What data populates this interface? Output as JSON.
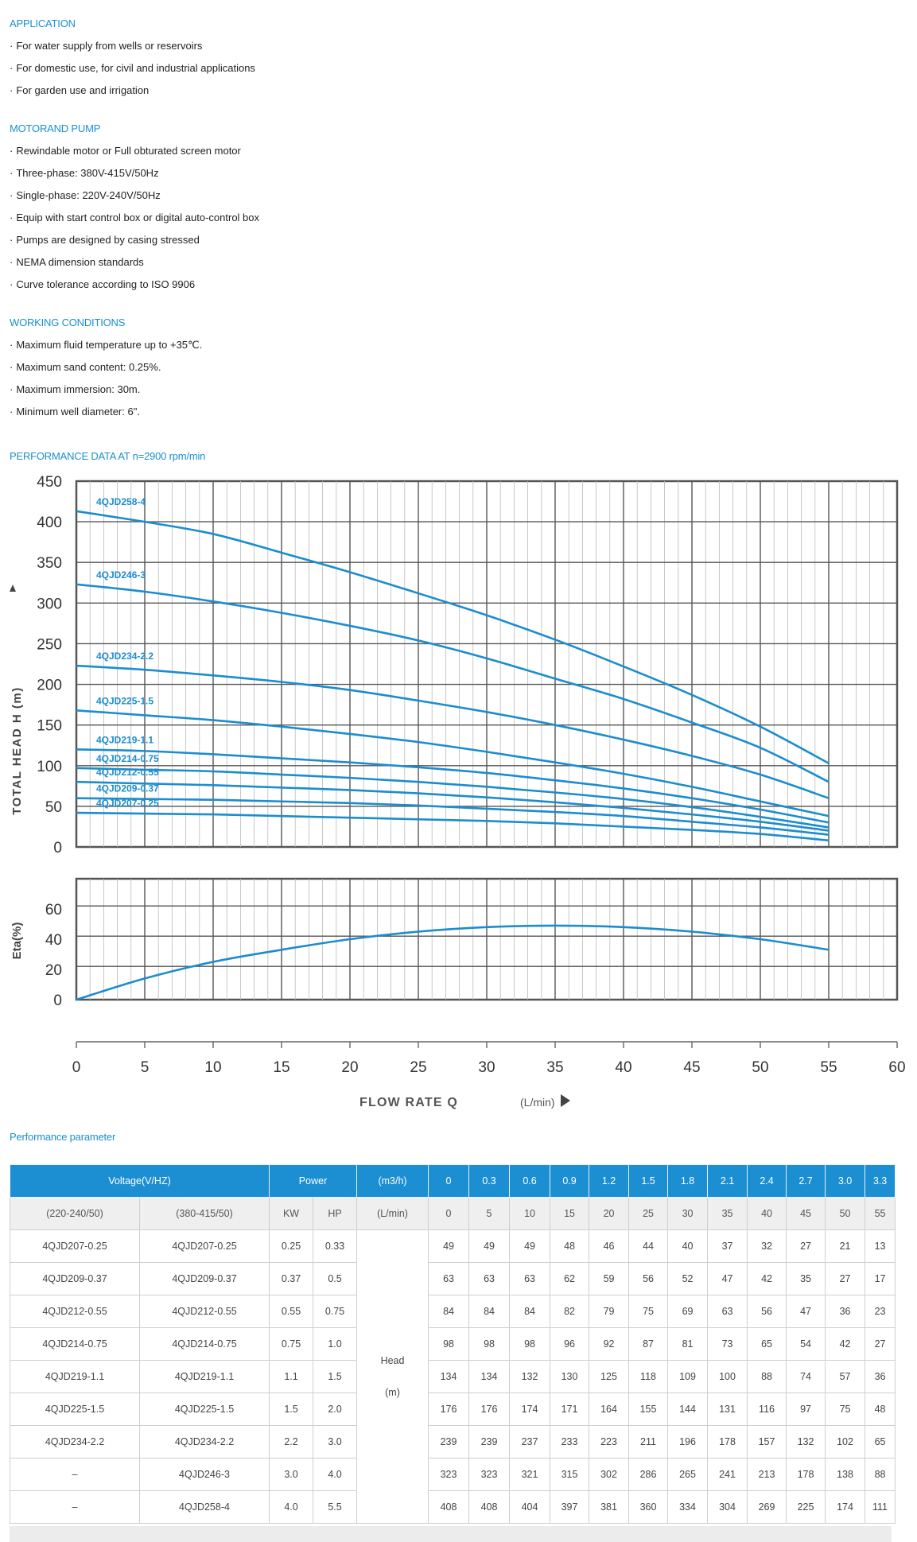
{
  "sections": {
    "application": {
      "title": "APPLICATION",
      "items": [
        "For water supply from wells or reservoirs",
        "For domestic use, for civil and industrial applications",
        "For garden use and irrigation"
      ]
    },
    "motor": {
      "title": "MOTORAND PUMP",
      "items": [
        "Rewindable motor or Full obturated screen motor",
        "Three-phase: 380V-415V/50Hz",
        "Single-phase: 220V-240V/50Hz",
        "Equip with start control box or digital auto-control box",
        "Pumps are designed by casing stressed",
        "NEMA dimension standards",
        "Curve tolerance according to ISO 9906"
      ]
    },
    "working": {
      "title": "WORKING CONDITIONS",
      "items": [
        "Maximum fluid temperature up to +35℃.",
        "Maximum sand content: 0.25%.",
        "Maximum immersion: 30m.",
        "Minimum well diameter: 6\"."
      ]
    },
    "performance_title": "PERFORMANCE DATA AT n=2900 rpm/min",
    "param_title": "Performance parameter"
  },
  "colors": {
    "accent": "#1a8fcf",
    "curve": "#1b8dcf",
    "grid": "#555555",
    "header_bg": "#1b8fd2"
  },
  "chart_data": [
    {
      "type": "line",
      "ylabel": "TOTAL HEAD H (m)",
      "ylim": [
        0,
        450
      ],
      "yticks": [
        0,
        50,
        100,
        150,
        200,
        250,
        300,
        350,
        400,
        450
      ],
      "xlim": [
        0,
        60
      ],
      "x": [
        0,
        5,
        10,
        15,
        20,
        25,
        30,
        35,
        40,
        45,
        50,
        55
      ],
      "series": [
        {
          "name": "4QJD258-4",
          "values": [
            413,
            400,
            385,
            362,
            338,
            312,
            285,
            255,
            222,
            187,
            148,
            103
          ]
        },
        {
          "name": "4QJD246-3",
          "values": [
            323,
            314,
            302,
            288,
            272,
            254,
            232,
            207,
            182,
            153,
            122,
            80
          ]
        },
        {
          "name": "4QJD234-2.2",
          "values": [
            223,
            218,
            211,
            203,
            193,
            180,
            166,
            150,
            132,
            112,
            89,
            60
          ]
        },
        {
          "name": "4QJD225-1.5",
          "values": [
            168,
            162,
            156,
            148,
            139,
            129,
            117,
            104,
            90,
            74,
            56,
            38
          ]
        },
        {
          "name": "4QJD219-1.1",
          "values": [
            120,
            118,
            114,
            109,
            104,
            98,
            91,
            82,
            72,
            60,
            46,
            30
          ]
        },
        {
          "name": "4QJD214-0.75",
          "values": [
            97,
            95,
            93,
            89,
            85,
            80,
            74,
            67,
            59,
            49,
            37,
            24
          ]
        },
        {
          "name": "4QJD212-0.55",
          "values": [
            80,
            78,
            76,
            73,
            70,
            66,
            61,
            55,
            48,
            40,
            31,
            20
          ]
        },
        {
          "name": "4QJD209-0.37",
          "values": [
            60,
            59,
            58,
            56,
            54,
            51,
            47,
            43,
            38,
            31,
            24,
            15
          ]
        },
        {
          "name": "4QJD207-0.25",
          "values": [
            42,
            41,
            40,
            38,
            36,
            34,
            32,
            29,
            25,
            21,
            16,
            8
          ]
        }
      ]
    },
    {
      "type": "line",
      "ylabel": "Eta(%)",
      "ylim": [
        0,
        80
      ],
      "yticks": [
        0,
        20,
        40,
        60
      ],
      "xlim": [
        0,
        60
      ],
      "x": [
        0,
        5,
        10,
        15,
        20,
        25,
        30,
        35,
        40,
        45,
        50,
        55
      ],
      "series": [
        {
          "name": "",
          "values": [
            0,
            14,
            25,
            33,
            40,
            45,
            48,
            49,
            48,
            45,
            40,
            33
          ]
        }
      ]
    }
  ],
  "xaxis": {
    "ticks": [
      0,
      5,
      10,
      15,
      20,
      25,
      30,
      35,
      40,
      45,
      50,
      55,
      60
    ],
    "label": "FLOW RATE Q",
    "unit": "(L/min)"
  },
  "table": {
    "header": {
      "voltage": "Voltage(V/HZ)",
      "power": "Power",
      "flow_unit": "(m3/h)",
      "flows": [
        "0",
        "0.3",
        "0.6",
        "0.9",
        "1.2",
        "1.5",
        "1.8",
        "2.1",
        "2.4",
        "2.7",
        "3.0",
        "3.3"
      ]
    },
    "subheader": {
      "single": "(220-240/50)",
      "three": "(380-415/50)",
      "kw": "KW",
      "hp": "HP",
      "unit": "(L/min)",
      "flows": [
        "0",
        "5",
        "10",
        "15",
        "20",
        "25",
        "30",
        "35",
        "40",
        "45",
        "50",
        "55"
      ]
    },
    "head_label": "Head",
    "head_unit": "(m)",
    "rows": [
      {
        "single": "4QJD207-0.25",
        "three": "4QJD207-0.25",
        "kw": "0.25",
        "hp": "0.33",
        "heads": [
          "49",
          "49",
          "49",
          "48",
          "46",
          "44",
          "40",
          "37",
          "32",
          "27",
          "21",
          "13"
        ]
      },
      {
        "single": "4QJD209-0.37",
        "three": "4QJD209-0.37",
        "kw": "0.37",
        "hp": "0.5",
        "heads": [
          "63",
          "63",
          "63",
          "62",
          "59",
          "56",
          "52",
          "47",
          "42",
          "35",
          "27",
          "17"
        ]
      },
      {
        "single": "4QJD212-0.55",
        "three": "4QJD212-0.55",
        "kw": "0.55",
        "hp": "0.75",
        "heads": [
          "84",
          "84",
          "84",
          "82",
          "79",
          "75",
          "69",
          "63",
          "56",
          "47",
          "36",
          "23"
        ]
      },
      {
        "single": "4QJD214-0.75",
        "three": "4QJD214-0.75",
        "kw": "0.75",
        "hp": "1.0",
        "heads": [
          "98",
          "98",
          "98",
          "96",
          "92",
          "87",
          "81",
          "73",
          "65",
          "54",
          "42",
          "27"
        ]
      },
      {
        "single": "4QJD219-1.1",
        "three": "4QJD219-1.1",
        "kw": "1.1",
        "hp": "1.5",
        "heads": [
          "134",
          "134",
          "132",
          "130",
          "125",
          "118",
          "109",
          "100",
          "88",
          "74",
          "57",
          "36"
        ]
      },
      {
        "single": "4QJD225-1.5",
        "three": "4QJD225-1.5",
        "kw": "1.5",
        "hp": "2.0",
        "heads": [
          "176",
          "176",
          "174",
          "171",
          "164",
          "155",
          "144",
          "131",
          "116",
          "97",
          "75",
          "48"
        ]
      },
      {
        "single": "4QJD234-2.2",
        "three": "4QJD234-2.2",
        "kw": "2.2",
        "hp": "3.0",
        "heads": [
          "239",
          "239",
          "237",
          "233",
          "223",
          "211",
          "196",
          "178",
          "157",
          "132",
          "102",
          "65"
        ]
      },
      {
        "single": "–",
        "three": "4QJD246-3",
        "kw": "3.0",
        "hp": "4.0",
        "heads": [
          "323",
          "323",
          "321",
          "315",
          "302",
          "286",
          "265",
          "241",
          "213",
          "178",
          "138",
          "88"
        ]
      },
      {
        "single": "–",
        "three": "4QJD258-4",
        "kw": "4.0",
        "hp": "5.5",
        "heads": [
          "408",
          "408",
          "404",
          "397",
          "381",
          "360",
          "334",
          "304",
          "269",
          "225",
          "174",
          "111"
        ]
      }
    ]
  }
}
